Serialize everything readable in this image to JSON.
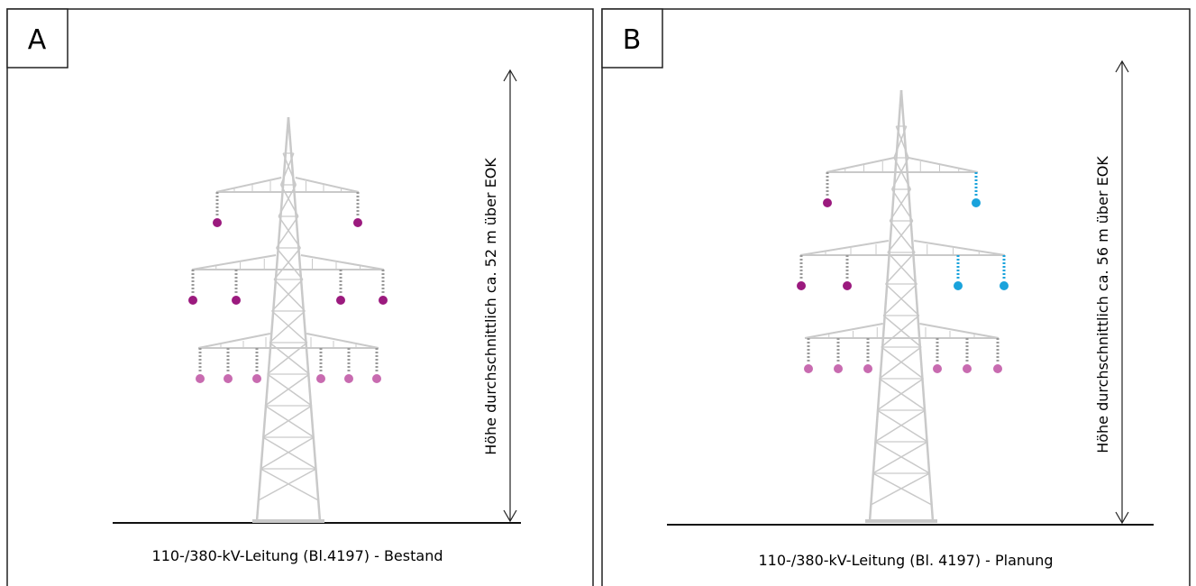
{
  "panels": [
    {
      "label": "A",
      "height_label": "Höhe durchschnittlich ca. 52 m über EOK",
      "caption": "110-/380-kV-Leitung (Bl.4197) - Bestand"
    },
    {
      "label": "B",
      "height_label": "Höhe durchschnittlich ca. 56 m über EOK",
      "caption": "110-/380-kV-Leitung (Bl. 4197) - Planung"
    }
  ]
}
